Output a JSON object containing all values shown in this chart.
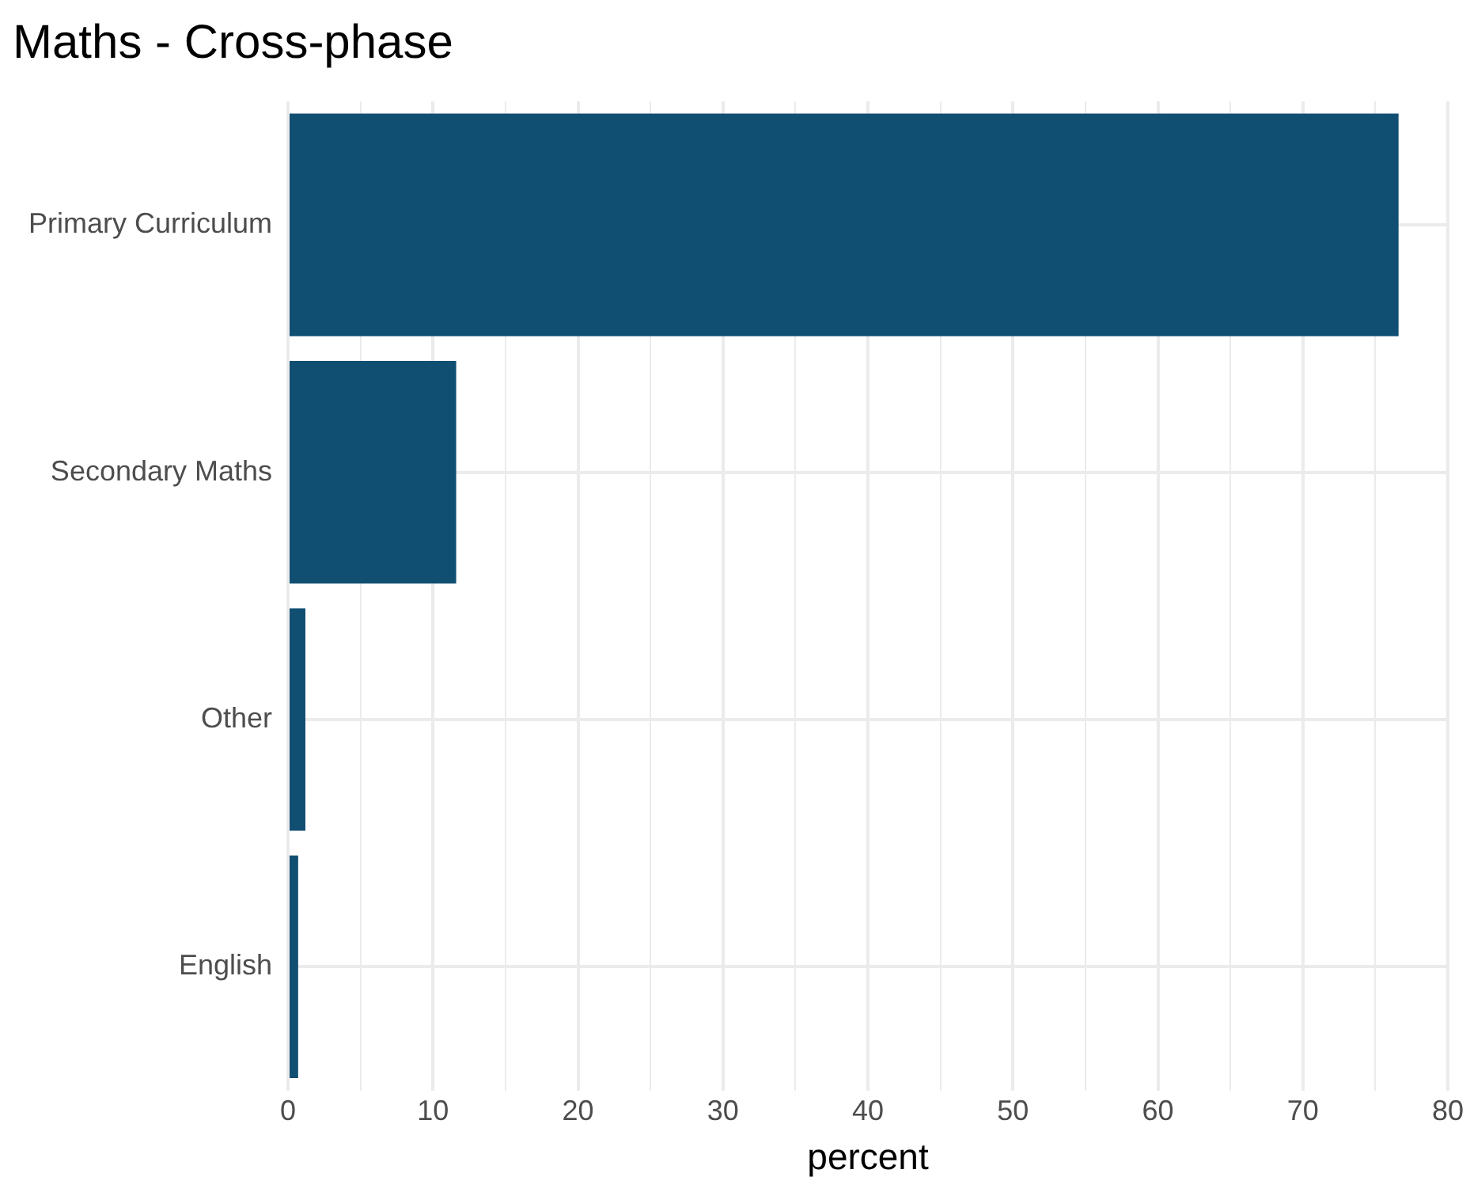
{
  "chart_data": {
    "type": "bar",
    "orientation": "horizontal",
    "title": "Maths - Cross-phase",
    "xlabel": "percent",
    "categories": [
      "Primary Curriculum",
      "Secondary Maths",
      "Other",
      "English"
    ],
    "values": [
      76.6,
      11.6,
      1.2,
      0.7
    ],
    "color": "#114f72",
    "xlim": [
      0,
      80
    ],
    "xticks": [
      0,
      {
        "value": 5,
        "label": null
      },
      10,
      {
        "value": 15,
        "label": null
      },
      20,
      {
        "value": 25,
        "label": null
      },
      30,
      {
        "value": 35,
        "label": null
      },
      40,
      {
        "value": 45,
        "label": null
      },
      50,
      {
        "value": 55,
        "label": null
      },
      60,
      {
        "value": 65,
        "label": null
      },
      70,
      {
        "value": 75,
        "label": null
      },
      80
    ],
    "grid": true,
    "legend": false
  }
}
